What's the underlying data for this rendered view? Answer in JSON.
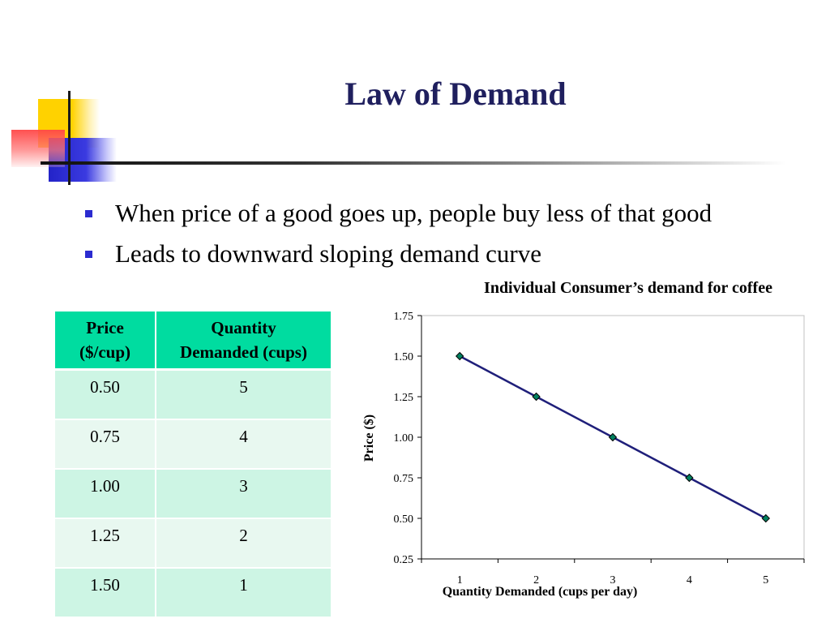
{
  "slide": {
    "title": "Law of Demand",
    "bullets": [
      "When price of a good goes up, people buy less of that good",
      "Leads to downward sloping demand curve"
    ]
  },
  "table": {
    "headers": [
      "Price ($/cup)",
      "Quantity Demanded (cups)"
    ],
    "header_lines": [
      [
        "Price",
        "($/cup)"
      ],
      [
        "Quantity",
        "Demanded (cups)"
      ]
    ],
    "rows": [
      [
        "0.50",
        "5"
      ],
      [
        "0.75",
        "4"
      ],
      [
        "1.00",
        "3"
      ],
      [
        "1.25",
        "2"
      ],
      [
        "1.50",
        "1"
      ]
    ],
    "colors": {
      "header": "#00dca0",
      "row_odd": "#cdf5e4",
      "row_even": "#e8f8f0"
    }
  },
  "chart_data": {
    "type": "line",
    "title": "Individual Consumer’s demand for coffee",
    "xlabel": "Quantity Demanded (cups per day)",
    "ylabel": "Price ($)",
    "x": [
      1,
      2,
      3,
      4,
      5
    ],
    "series": [
      {
        "values": [
          1.5,
          1.25,
          1.0,
          0.75,
          0.5
        ],
        "color": "#1f1f7a",
        "marker": "diamond",
        "marker_color": "#008060"
      }
    ],
    "x_ticks": [
      "1",
      "2",
      "3",
      "4",
      "5"
    ],
    "y_ticks": [
      "0.25",
      "0.50",
      "0.75",
      "1.00",
      "1.25",
      "1.50",
      "1.75"
    ],
    "xlim": [
      0.5,
      5.5
    ],
    "ylim": [
      0.25,
      1.75
    ],
    "grid": false,
    "legend": "none"
  },
  "colors": {
    "title": "#1f1f5e",
    "bullet": "#2b2bd0"
  }
}
